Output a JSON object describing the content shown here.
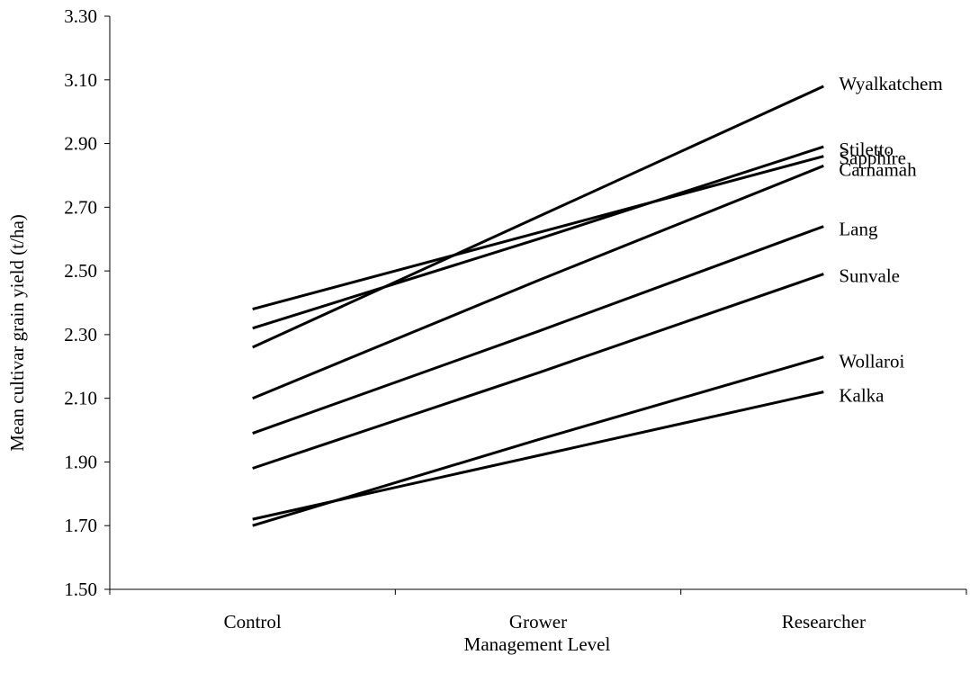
{
  "chart_data": {
    "type": "line",
    "title": "",
    "xlabel": "Management Level",
    "ylabel": "Mean cultivar grain yield (t/ha)",
    "categories": [
      "Control",
      "Grower",
      "Researcher"
    ],
    "ylim": [
      1.5,
      3.3
    ],
    "yticks": [
      "1.50",
      "1.70",
      "1.90",
      "2.10",
      "2.30",
      "2.50",
      "2.70",
      "2.90",
      "3.10",
      "3.30"
    ],
    "grid": false,
    "legend": "none; series labelled at right end of each line",
    "line_color": "#000000",
    "series": [
      {
        "name": "Wyalkatchem",
        "values": [
          2.26,
          2.67,
          3.08
        ]
      },
      {
        "name": "Stiletto",
        "values": [
          2.32,
          2.6,
          2.89
        ]
      },
      {
        "name": "Sapphire",
        "values": [
          2.38,
          2.62,
          2.86
        ]
      },
      {
        "name": "Carnamah",
        "values": [
          2.1,
          2.47,
          2.83
        ]
      },
      {
        "name": "Lang",
        "values": [
          1.99,
          2.31,
          2.64
        ]
      },
      {
        "name": "Sunvale",
        "values": [
          1.88,
          2.18,
          2.49
        ]
      },
      {
        "name": "Wollaroi",
        "values": [
          1.7,
          1.97,
          2.23
        ]
      },
      {
        "name": "Kalka",
        "values": [
          1.72,
          1.92,
          2.12
        ]
      }
    ]
  }
}
